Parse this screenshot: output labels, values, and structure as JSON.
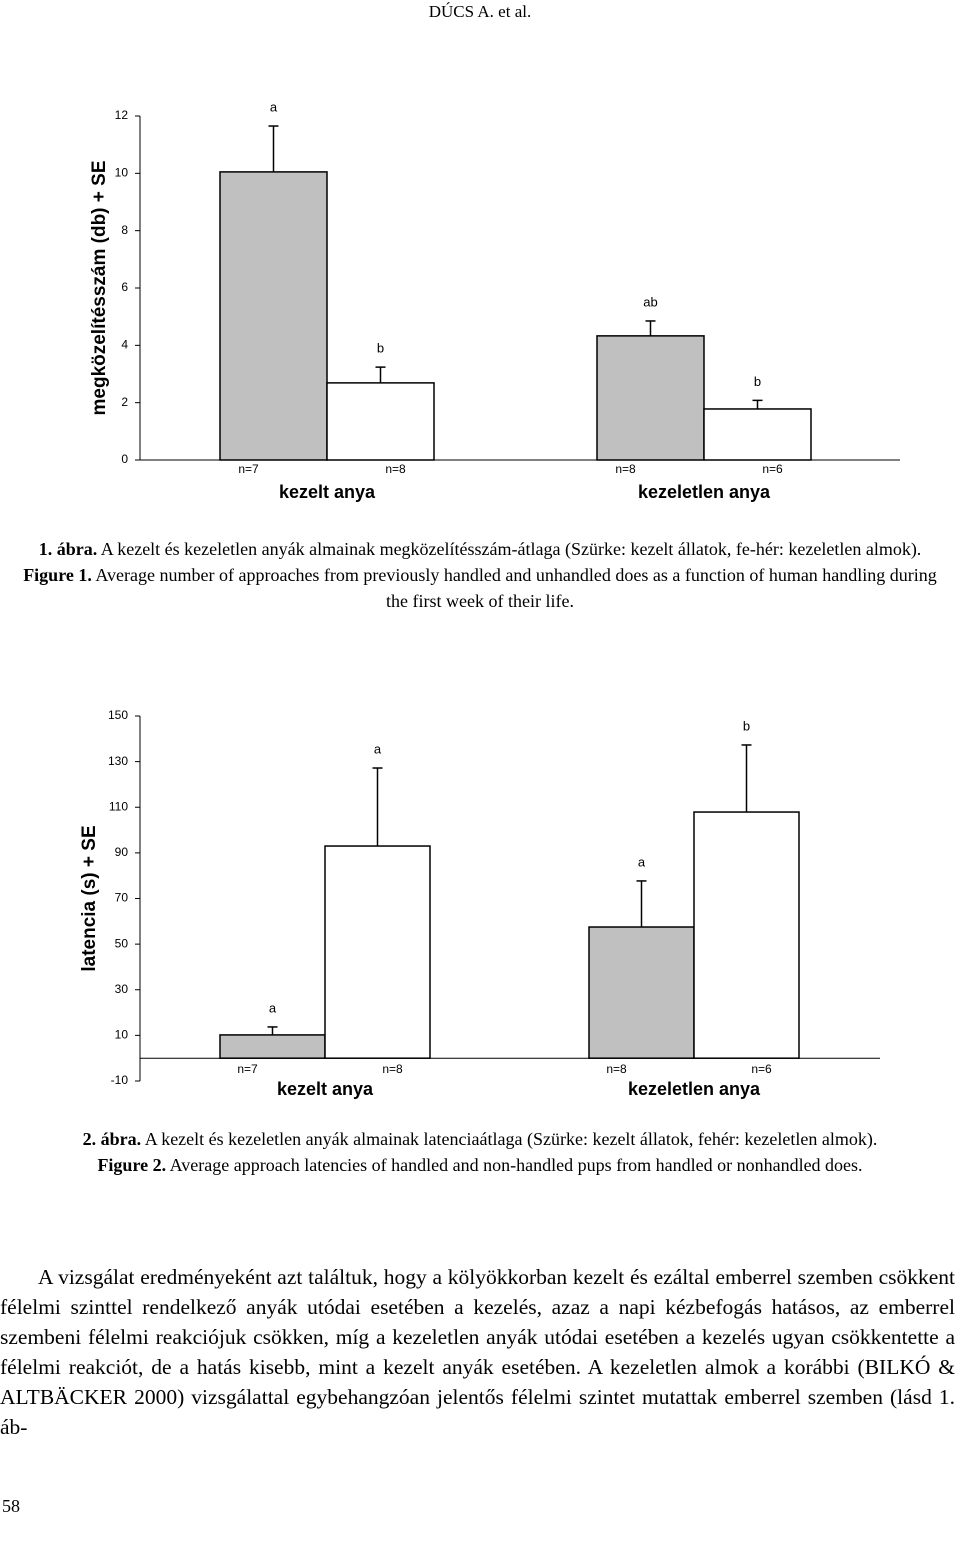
{
  "header": "DÚCS A. et al.",
  "chart_data": [
    {
      "type": "bar",
      "y_label": "megközelítésszám (db) + SE",
      "categories": [
        "kezelt anya",
        "kezeletlen anya"
      ],
      "ylim": [
        0,
        12
      ],
      "yticks": [
        0,
        2,
        4,
        6,
        8,
        10,
        12
      ],
      "series": [
        {
          "color": "#c0c0c0",
          "values": [
            10.05,
            4.33
          ],
          "errors": [
            1.6,
            0.52
          ],
          "letters": [
            "a",
            "ab"
          ],
          "n_labels": [
            "n=7",
            "n=8"
          ]
        },
        {
          "color": "#ffffff",
          "values": [
            2.69,
            1.78
          ],
          "errors": [
            0.55,
            0.3
          ],
          "letters": [
            "b",
            "b"
          ],
          "n_labels": [
            "n=8",
            "n=6"
          ]
        }
      ]
    },
    {
      "type": "bar",
      "y_label": "latencia (s) + SE",
      "categories": [
        "kezelt anya",
        "kezeletlen anya"
      ],
      "ylim": [
        -10,
        150
      ],
      "yticks": [
        -10,
        10,
        30,
        50,
        70,
        90,
        110,
        130,
        150
      ],
      "series": [
        {
          "color": "#c0c0c0",
          "values": [
            10.2,
            57.5
          ],
          "errors": [
            3.5,
            20.2
          ],
          "letters": [
            "a",
            "a"
          ],
          "n_labels": [
            "n=7",
            "n=8"
          ]
        },
        {
          "color": "#ffffff",
          "values": [
            93.0,
            107.9
          ],
          "errors": [
            34.2,
            29.4
          ],
          "letters": [
            "a",
            "b"
          ],
          "n_labels": [
            "n=8",
            "n=6"
          ]
        }
      ]
    }
  ],
  "caption1": {
    "hu_label": "1. ábra.",
    "hu_text": "A kezelt és kezeletlen anyák almainak megközelítésszám-átlaga (Szürke: kezelt állatok, fe-hér: kezeletlen almok).",
    "en_label": "Figure 1.",
    "en_text": "Average number of approaches from previously handled and unhandled does as a function of human handling during the first week of their life."
  },
  "caption2": {
    "hu_label": "2. ábra.",
    "hu_text": "A kezelt és kezeletlen anyák almainak latenciaátlaga (Szürke: kezelt állatok, fehér: kezeletlen almok).",
    "en_label": "Figure 2.",
    "en_text": "Average approach latencies of  handled and non-handled pups from handled or nonhandled does."
  },
  "body": "A vizsgálat eredményeként azt találtuk, hogy a kölyökkorban kezelt és ezáltal emberrel szemben csökkent félelmi szinttel rendelkező anyák utódai esetében a kezelés, azaz a napi kézbefogás hatásos, az emberrel szembeni félelmi reakciójuk csökken, míg a kezeletlen anyák utódai esetében a kezelés ugyan csökkentette a félelmi reakciót, de a hatás kisebb, mint a kezelt anyák esetében. A kezeletlen almok a korábbi (BILKÓ & ALTBÄCKER 2000) vizsgálattal egybehangzóan jelentős félelmi szintet mutattak emberrel szemben (lásd 1. áb-",
  "page_number": "58"
}
